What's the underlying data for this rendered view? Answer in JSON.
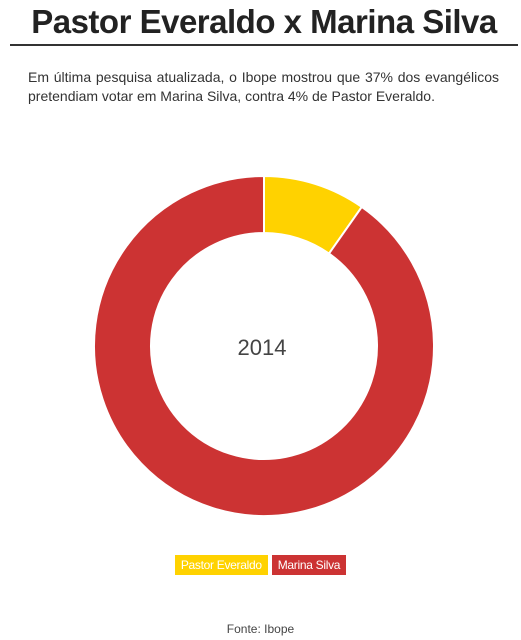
{
  "header": {
    "title": "Pastor Everaldo x Marina Silva"
  },
  "intro": "Em última pesquisa atualizada, o Ibope mostrou que 37% dos evangélicos pretendiam votar em Marina Silva, contra 4% de Pastor Everaldo.",
  "chart_data": {
    "type": "pie",
    "center_label": "2014",
    "categories": [
      "Pastor Everaldo",
      "Marina Silva"
    ],
    "values": [
      4,
      37
    ],
    "colors": [
      "#ffd200",
      "#cc3333"
    ],
    "legend_position": "bottom"
  },
  "footer": {
    "source": "Fonte: Ibope"
  }
}
